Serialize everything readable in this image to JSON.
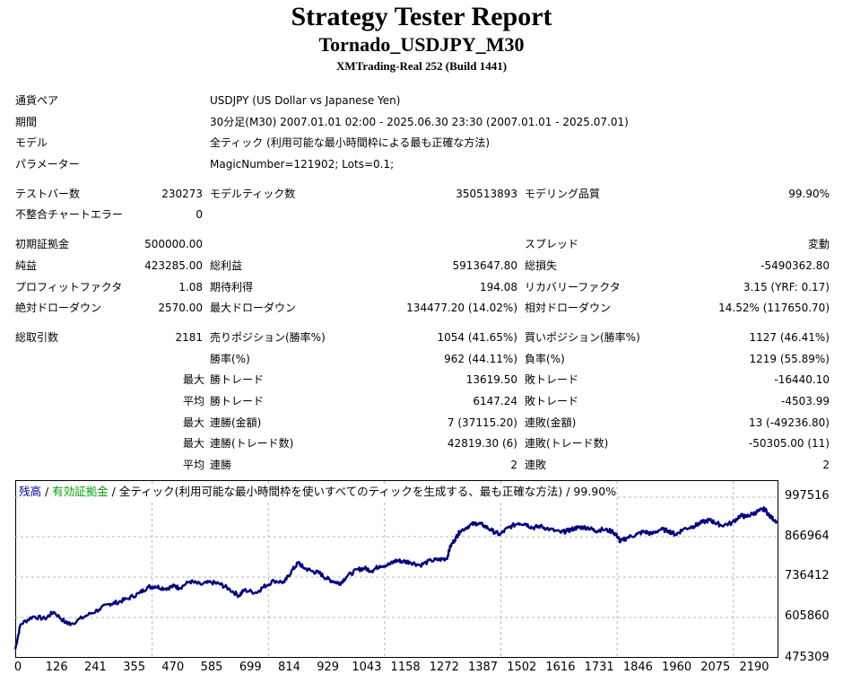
{
  "header": {
    "title": "Strategy Tester Report",
    "subtitle": "Tornado_USDJPY_M30",
    "server": "XMTrading-Real 252 (Build 1441)"
  },
  "info": {
    "symbol_label": "通貨ペア",
    "symbol_value": "USDJPY (US Dollar vs Japanese Yen)",
    "period_label": "期間",
    "period_value": "30分足(M30) 2007.01.01 02:00 - 2025.06.30 23:30 (2007.01.01 - 2025.07.01)",
    "model_label": "モデル",
    "model_value": "全ティック (利用可能な最小時間枠による最も正確な方法)",
    "params_label": "パラメーター",
    "params_value": "MagicNumber=121902; Lots=0.1;"
  },
  "stats": {
    "bars_label": "テストバー数",
    "bars_value": "230273",
    "ticks_label": "モデルティック数",
    "ticks_value": "350513893",
    "quality_label": "モデリング品質",
    "quality_value": "99.90%",
    "mismatch_label": "不整合チャートエラー",
    "mismatch_value": "0",
    "deposit_label": "初期証拠金",
    "deposit_value": "500000.00",
    "spread_label": "スプレッド",
    "spread_value": "変動",
    "netprofit_label": "純益",
    "netprofit_value": "423285.00",
    "grossprofit_label": "総利益",
    "grossprofit_value": "5913647.80",
    "grossloss_label": "総損失",
    "grossloss_value": "-5490362.80",
    "pf_label": "プロフィットファクタ",
    "pf_value": "1.08",
    "expected_label": "期待利得",
    "expected_value": "194.08",
    "recovery_label": "リカバリーファクタ",
    "recovery_value": "3.15 (YRF: 0.17)",
    "absdd_label": "絶対ドローダウン",
    "absdd_value": "2570.00",
    "maxdd_label": "最大ドローダウン",
    "maxdd_value": "134477.20 (14.02%)",
    "reldd_label": "相対ドローダウン",
    "reldd_value": "14.52% (117650.70)",
    "trades_label": "総取引数",
    "trades_value": "2181",
    "short_label": "売りポジション(勝率%)",
    "short_value": "1054 (41.65%)",
    "long_label": "買いポジション(勝率%)",
    "long_value": "1127 (46.41%)",
    "winpct_label": "勝率(%)",
    "winpct_value": "962 (44.11%)",
    "losspct_label": "負率(%)",
    "losspct_value": "1219 (55.89%)",
    "max_prefix": "最大",
    "avg_prefix": "平均",
    "maxwin_label": "勝トレード",
    "maxwin_value": "13619.50",
    "maxloss_label": "敗トレード",
    "maxloss_value": "-16440.10",
    "avgwin_label": "勝トレード",
    "avgwin_value": "6147.24",
    "avgloss_label": "敗トレード",
    "avgloss_value": "-4503.99",
    "consecwin_amt_label": "連勝(金額)",
    "consecwin_amt_value": "7 (37115.20)",
    "consecloss_amt_label": "連敗(金額)",
    "consecloss_amt_value": "13 (-49236.80)",
    "consecwin_cnt_label": "連勝(トレード数)",
    "consecwin_cnt_value": "42819.30 (6)",
    "consecloss_cnt_label": "連敗(トレード数)",
    "consecloss_cnt_value": "-50305.00 (11)",
    "avgconsecwin_label": "連勝",
    "avgconsecwin_value": "2",
    "avgconsecloss_label": "連敗",
    "avgconsecloss_value": "2"
  },
  "legend": {
    "balance": "残高",
    "sep1": " / ",
    "equity": "有効証拠金",
    "sep2": " / ",
    "rest": "全ティック(利用可能な最小時間枠を使いすべてのティックを生成する、最も正確な方法) / 99.90%"
  },
  "chart_data": {
    "type": "line",
    "xlim": [
      0,
      2181
    ],
    "ylim": [
      475309,
      1040000
    ],
    "x_ticks": [
      "0",
      "126",
      "241",
      "355",
      "470",
      "585",
      "699",
      "814",
      "929",
      "1043",
      "1158",
      "1272",
      "1387",
      "1502",
      "1616",
      "1731",
      "1846",
      "1960",
      "2075",
      "2190"
    ],
    "y_ticks": [
      "997516",
      "866964",
      "736412",
      "605860",
      "475309"
    ],
    "grid": true,
    "series": [
      {
        "name": "残高",
        "color": "#000080",
        "points": [
          [
            0,
            500000
          ],
          [
            15,
            580000
          ],
          [
            50,
            605000
          ],
          [
            85,
            598000
          ],
          [
            110,
            620000
          ],
          [
            145,
            585000
          ],
          [
            160,
            582000
          ],
          [
            200,
            606000
          ],
          [
            240,
            628000
          ],
          [
            270,
            646000
          ],
          [
            290,
            650000
          ],
          [
            320,
            662000
          ],
          [
            355,
            680000
          ],
          [
            380,
            700000
          ],
          [
            400,
            702000
          ],
          [
            430,
            695000
          ],
          [
            455,
            703000
          ],
          [
            470,
            697000
          ],
          [
            500,
            718000
          ],
          [
            530,
            708000
          ],
          [
            560,
            715000
          ],
          [
            585,
            710000
          ],
          [
            610,
            695000
          ],
          [
            640,
            672000
          ],
          [
            655,
            690000
          ],
          [
            690,
            682000
          ],
          [
            710,
            700000
          ],
          [
            740,
            720000
          ],
          [
            770,
            715000
          ],
          [
            790,
            750000
          ],
          [
            810,
            778000
          ],
          [
            825,
            762000
          ],
          [
            850,
            750000
          ],
          [
            870,
            745000
          ],
          [
            890,
            728000
          ],
          [
            910,
            718000
          ],
          [
            929,
            712000
          ],
          [
            950,
            735000
          ],
          [
            980,
            756000
          ],
          [
            1000,
            760000
          ],
          [
            1020,
            752000
          ],
          [
            1043,
            768000
          ],
          [
            1070,
            772000
          ],
          [
            1090,
            785000
          ],
          [
            1110,
            782000
          ],
          [
            1130,
            780000
          ],
          [
            1158,
            770000
          ],
          [
            1190,
            785000
          ],
          [
            1215,
            788000
          ],
          [
            1235,
            792000
          ],
          [
            1245,
            830000
          ],
          [
            1262,
            860000
          ],
          [
            1272,
            878000
          ],
          [
            1300,
            898000
          ],
          [
            1320,
            905000
          ],
          [
            1340,
            898000
          ],
          [
            1365,
            880000
          ],
          [
            1387,
            868000
          ],
          [
            1410,
            890000
          ],
          [
            1440,
            905000
          ],
          [
            1460,
            903000
          ],
          [
            1480,
            890000
          ],
          [
            1502,
            895000
          ],
          [
            1530,
            885000
          ],
          [
            1560,
            875000
          ],
          [
            1580,
            880000
          ],
          [
            1600,
            888000
          ],
          [
            1616,
            892000
          ],
          [
            1640,
            890000
          ],
          [
            1660,
            880000
          ],
          [
            1680,
            885000
          ],
          [
            1710,
            878000
          ],
          [
            1725,
            860000
          ],
          [
            1731,
            845000
          ],
          [
            1750,
            858000
          ],
          [
            1780,
            870000
          ],
          [
            1800,
            878000
          ],
          [
            1820,
            870000
          ],
          [
            1846,
            885000
          ],
          [
            1870,
            880000
          ],
          [
            1890,
            868000
          ],
          [
            1910,
            885000
          ],
          [
            1940,
            895000
          ],
          [
            1960,
            905000
          ],
          [
            1985,
            915000
          ],
          [
            2000,
            908000
          ],
          [
            2020,
            898000
          ],
          [
            2050,
            905000
          ],
          [
            2075,
            930000
          ],
          [
            2090,
            925000
          ],
          [
            2110,
            935000
          ],
          [
            2130,
            945000
          ],
          [
            2145,
            950000
          ],
          [
            2160,
            925000
          ],
          [
            2181,
            910000
          ]
        ]
      }
    ]
  }
}
